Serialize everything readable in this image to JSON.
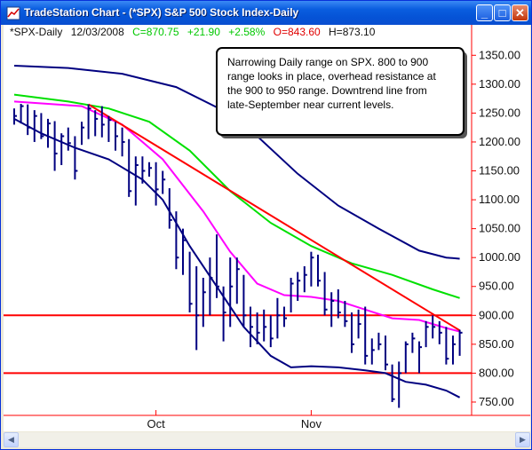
{
  "window": {
    "title": "TradeStation Chart - (*SPX) S&P 500 Stock Index-Daily",
    "minimize_glyph": "_",
    "maximize_glyph": "□",
    "close_glyph": "✕",
    "app_icon": "chart-app-icon"
  },
  "status": {
    "symbol": "*SPX-Daily",
    "date": "12/03/2008",
    "close": "C=870.75",
    "change": "+21.90",
    "change_pct": "+2.58%",
    "open": "O=843.60",
    "high": "H=873.10",
    "close_color": "#00C800",
    "open_color": "#E00000"
  },
  "annotation": {
    "lines": [
      "Narrowing Daily range on SPX.  800 to 900",
      "range looks in place, overhead resistance at",
      "the 900 to 950 range.  Downtrend line from",
      "late-September near current levels."
    ]
  },
  "scrollbar": {
    "left_icon": "scroll-left-arrow-icon",
    "right_icon": "scroll-right-arrow-icon"
  },
  "chart_data": {
    "type": "line",
    "title": "",
    "y_ticks": [
      750,
      800,
      850,
      900,
      950,
      1000,
      1050,
      1100,
      1150,
      1200,
      1250,
      1300,
      1350
    ],
    "y_tick_labels": [
      "750.00",
      "800.00",
      "850.00",
      "900.00",
      "950.00",
      "1000.00",
      "1050.00",
      "1100.00",
      "1150.00",
      "1200.00",
      "1250.00",
      "1300.00",
      "1350.00"
    ],
    "x_labels": [
      {
        "label": "Oct",
        "bar_index": 21
      },
      {
        "label": "Nov",
        "bar_index": 44
      }
    ],
    "ylim": [
      730,
      1375
    ],
    "bar_count": 67,
    "bars": [
      {
        "h": 1258,
        "l": 1230,
        "c": 1245
      },
      {
        "h": 1266,
        "l": 1232,
        "c": 1262
      },
      {
        "h": 1265,
        "l": 1212,
        "c": 1225
      },
      {
        "h": 1255,
        "l": 1200,
        "c": 1245
      },
      {
        "h": 1250,
        "l": 1205,
        "c": 1210
      },
      {
        "h": 1240,
        "l": 1190,
        "c": 1232
      },
      {
        "h": 1236,
        "l": 1150,
        "c": 1180
      },
      {
        "h": 1215,
        "l": 1160,
        "c": 1210
      },
      {
        "h": 1225,
        "l": 1185,
        "c": 1198
      },
      {
        "h": 1210,
        "l": 1135,
        "c": 1150
      },
      {
        "h": 1235,
        "l": 1195,
        "c": 1225
      },
      {
        "h": 1265,
        "l": 1205,
        "c": 1258
      },
      {
        "h": 1255,
        "l": 1210,
        "c": 1240
      },
      {
        "h": 1262,
        "l": 1208,
        "c": 1230
      },
      {
        "h": 1245,
        "l": 1200,
        "c": 1238
      },
      {
        "h": 1235,
        "l": 1185,
        "c": 1210
      },
      {
        "h": 1225,
        "l": 1175,
        "c": 1200
      },
      {
        "h": 1205,
        "l": 1105,
        "c": 1115
      },
      {
        "h": 1175,
        "l": 1090,
        "c": 1160
      },
      {
        "h": 1175,
        "l": 1128,
        "c": 1150
      },
      {
        "h": 1165,
        "l": 1140,
        "c": 1155
      },
      {
        "h": 1165,
        "l": 1090,
        "c": 1118
      },
      {
        "h": 1150,
        "l": 1110,
        "c": 1135
      },
      {
        "h": 1120,
        "l": 1050,
        "c": 1065
      },
      {
        "h": 1080,
        "l": 980,
        "c": 1000
      },
      {
        "h": 1050,
        "l": 970,
        "c": 1030
      },
      {
        "h": 1010,
        "l": 905,
        "c": 920
      },
      {
        "h": 985,
        "l": 840,
        "c": 900
      },
      {
        "h": 965,
        "l": 880,
        "c": 940
      },
      {
        "h": 1000,
        "l": 900,
        "c": 965
      },
      {
        "h": 1040,
        "l": 930,
        "c": 950
      },
      {
        "h": 950,
        "l": 855,
        "c": 905
      },
      {
        "h": 1000,
        "l": 880,
        "c": 950
      },
      {
        "h": 1000,
        "l": 920,
        "c": 980
      },
      {
        "h": 970,
        "l": 880,
        "c": 900
      },
      {
        "h": 915,
        "l": 845,
        "c": 880
      },
      {
        "h": 905,
        "l": 850,
        "c": 870
      },
      {
        "h": 910,
        "l": 855,
        "c": 880
      },
      {
        "h": 900,
        "l": 845,
        "c": 860
      },
      {
        "h": 930,
        "l": 860,
        "c": 900
      },
      {
        "h": 915,
        "l": 880,
        "c": 895
      },
      {
        "h": 965,
        "l": 905,
        "c": 955
      },
      {
        "h": 975,
        "l": 925,
        "c": 960
      },
      {
        "h": 985,
        "l": 940,
        "c": 970
      },
      {
        "h": 1010,
        "l": 950,
        "c": 1000
      },
      {
        "h": 1005,
        "l": 950,
        "c": 960
      },
      {
        "h": 975,
        "l": 900,
        "c": 910
      },
      {
        "h": 940,
        "l": 880,
        "c": 925
      },
      {
        "h": 945,
        "l": 895,
        "c": 905
      },
      {
        "h": 925,
        "l": 880,
        "c": 890
      },
      {
        "h": 905,
        "l": 835,
        "c": 850
      },
      {
        "h": 910,
        "l": 860,
        "c": 885
      },
      {
        "h": 915,
        "l": 815,
        "c": 830
      },
      {
        "h": 860,
        "l": 815,
        "c": 840
      },
      {
        "h": 870,
        "l": 840,
        "c": 850
      },
      {
        "h": 865,
        "l": 805,
        "c": 815
      },
      {
        "h": 815,
        "l": 750,
        "c": 755
      },
      {
        "h": 820,
        "l": 740,
        "c": 800
      },
      {
        "h": 855,
        "l": 800,
        "c": 850
      },
      {
        "h": 870,
        "l": 835,
        "c": 860
      },
      {
        "h": 855,
        "l": 800,
        "c": 845
      },
      {
        "h": 890,
        "l": 845,
        "c": 880
      },
      {
        "h": 900,
        "l": 860,
        "c": 880
      },
      {
        "h": 890,
        "l": 850,
        "c": 870
      },
      {
        "h": 880,
        "l": 815,
        "c": 825
      },
      {
        "h": 865,
        "l": 815,
        "c": 850
      },
      {
        "h": 875,
        "l": 830,
        "c": 870
      }
    ],
    "series": [
      {
        "color": "#000080",
        "points": [
          [
            0,
            1332
          ],
          [
            8,
            1328
          ],
          [
            16,
            1318
          ],
          [
            24,
            1295
          ],
          [
            30,
            1260
          ],
          [
            36,
            1210
          ],
          [
            42,
            1145
          ],
          [
            48,
            1090
          ],
          [
            54,
            1050
          ],
          [
            60,
            1012
          ],
          [
            64,
            1000
          ],
          [
            66,
            998
          ]
        ]
      },
      {
        "color": "#00E000",
        "points": [
          [
            0,
            1282
          ],
          [
            8,
            1270
          ],
          [
            14,
            1258
          ],
          [
            20,
            1235
          ],
          [
            26,
            1185
          ],
          [
            32,
            1115
          ],
          [
            38,
            1060
          ],
          [
            44,
            1020
          ],
          [
            50,
            990
          ],
          [
            56,
            970
          ],
          [
            62,
            945
          ],
          [
            66,
            930
          ]
        ]
      },
      {
        "color": "#FF00FF",
        "points": [
          [
            0,
            1270
          ],
          [
            10,
            1262
          ],
          [
            16,
            1230
          ],
          [
            22,
            1170
          ],
          [
            28,
            1080
          ],
          [
            32,
            1010
          ],
          [
            36,
            955
          ],
          [
            40,
            935
          ],
          [
            44,
            932
          ],
          [
            48,
            925
          ],
          [
            52,
            910
          ],
          [
            56,
            895
          ],
          [
            60,
            892
          ],
          [
            64,
            878
          ],
          [
            66,
            872
          ]
        ]
      },
      {
        "color": "#000080",
        "points": [
          [
            0,
            1240
          ],
          [
            4,
            1215
          ],
          [
            9,
            1190
          ],
          [
            14,
            1170
          ],
          [
            19,
            1135
          ],
          [
            22,
            1100
          ],
          [
            26,
            1020
          ],
          [
            30,
            950
          ],
          [
            34,
            880
          ],
          [
            38,
            830
          ],
          [
            41,
            810
          ],
          [
            44,
            812
          ],
          [
            48,
            810
          ],
          [
            52,
            805
          ],
          [
            55,
            800
          ],
          [
            58,
            785
          ],
          [
            61,
            780
          ],
          [
            64,
            770
          ],
          [
            66,
            758
          ]
        ]
      }
    ],
    "reference_lines": [
      {
        "value": 900,
        "color": "#FF0000"
      },
      {
        "value": 800,
        "color": "#FF0000"
      }
    ],
    "trend_line": {
      "color": "#FF0000",
      "from": [
        11,
        1265
      ],
      "to": [
        66,
        874
      ]
    }
  }
}
